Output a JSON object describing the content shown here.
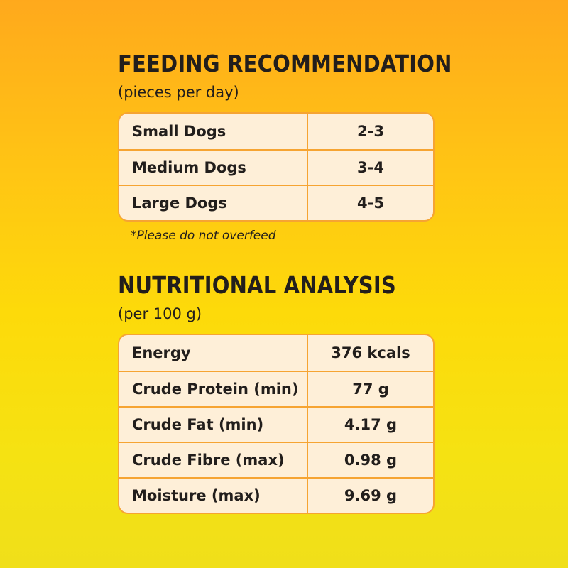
{
  "feeding": {
    "title": "FEEDING RECOMMENDATION",
    "subtitle": "(pieces per day)",
    "rows": [
      {
        "label": "Small Dogs",
        "value": "2-3"
      },
      {
        "label": "Medium Dogs",
        "value": "3-4"
      },
      {
        "label": "Large Dogs",
        "value": "4-5"
      }
    ],
    "note": "*Please do not overfeed"
  },
  "nutrition": {
    "title": "NUTRITIONAL ANALYSIS",
    "subtitle": "(per 100 g)",
    "rows": [
      {
        "label": "Energy",
        "value": "376 kcals"
      },
      {
        "label": "Crude Protein (min)",
        "value": "77 g"
      },
      {
        "label": "Crude Fat (min)",
        "value": "4.17 g"
      },
      {
        "label": "Crude Fibre (max)",
        "value": "0.98 g"
      },
      {
        "label": "Moisture (max)",
        "value": "9.69 g"
      }
    ]
  },
  "colors": {
    "background_top": "#FFA91C",
    "background_bottom": "#F0DF1A",
    "table_fill": "#FEEFD8",
    "table_border": "#F6A432",
    "text": "#221E1C"
  }
}
